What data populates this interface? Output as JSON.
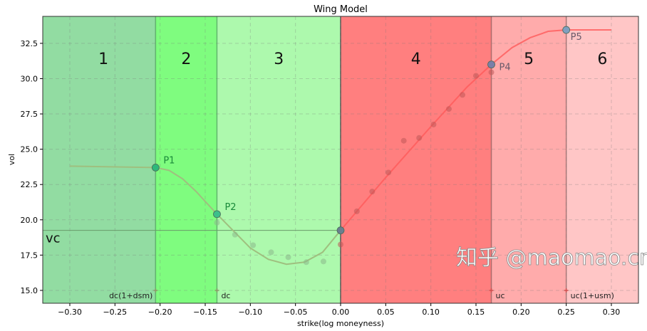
{
  "chart_data": {
    "type": "line",
    "title": "Wing Model",
    "xlabel": "strike(log moneyness)",
    "ylabel": "vol",
    "xlim": [
      -0.33,
      0.33
    ],
    "ylim": [
      14.09,
      34.41
    ],
    "grid": true,
    "xticks": [
      -0.3,
      -0.25,
      -0.2,
      -0.15,
      -0.1,
      -0.05,
      0.0,
      0.05,
      0.1,
      0.15,
      0.2,
      0.25,
      0.3
    ],
    "xtick_labels": [
      "−0.30",
      "−0.25",
      "−0.20",
      "−0.15",
      "−0.10",
      "−0.05",
      "0.00",
      "0.05",
      "0.10",
      "0.15",
      "0.20",
      "0.25",
      "0.30"
    ],
    "yticks": [
      15.0,
      17.5,
      20.0,
      22.5,
      25.0,
      27.5,
      30.0,
      32.5
    ],
    "ytick_labels": [
      "15.0",
      "17.5",
      "20.0",
      "22.5",
      "25.0",
      "27.5",
      "30.0",
      "32.5"
    ],
    "zones": [
      {
        "label": "1",
        "from": -0.33,
        "to": -0.205,
        "color": "#92dca2"
      },
      {
        "label": "2",
        "from": -0.205,
        "to": -0.137,
        "color": "#7ffc7f"
      },
      {
        "label": "3",
        "from": -0.137,
        "to": 0.0,
        "color": "#adf9ad"
      },
      {
        "label": "4",
        "from": 0.0,
        "to": 0.167,
        "color": "#ff7f7f"
      },
      {
        "label": "5",
        "from": 0.167,
        "to": 0.25,
        "color": "#ffabab"
      },
      {
        "label": "6",
        "from": 0.25,
        "to": 0.33,
        "color": "#ffc6c6"
      }
    ],
    "boundary_labels": [
      {
        "label": "dc(1+dsm)",
        "x": -0.205
      },
      {
        "label": "dc",
        "x": -0.137
      },
      {
        "label": "uc",
        "x": 0.167
      },
      {
        "label": "uc(1+usm)",
        "x": 0.25
      }
    ],
    "vc": {
      "label": "vc",
      "value": 19.25
    },
    "key_points": [
      {
        "label": "P1",
        "x": -0.205,
        "y": 23.7,
        "color": "#2eb87a"
      },
      {
        "label": "P2",
        "x": -0.137,
        "y": 20.4,
        "color": "#3cbf8a"
      },
      {
        "label": "",
        "x": 0.0,
        "y": 19.25,
        "color": "#6a7f8f"
      },
      {
        "label": "P4",
        "x": 0.167,
        "y": 31.0,
        "color": "#7a7fa8"
      },
      {
        "label": "P5",
        "x": 0.25,
        "y": 33.45,
        "color": "#7f9fc0"
      }
    ],
    "series": [
      {
        "kind": "model-curve",
        "x": [
          -0.3,
          -0.205,
          -0.19,
          -0.175,
          -0.16,
          -0.15,
          -0.137,
          -0.12,
          -0.1,
          -0.08,
          -0.06,
          -0.04,
          -0.02,
          0.0,
          0.05,
          0.1,
          0.14,
          0.167,
          0.19,
          0.21,
          0.23,
          0.25,
          0.3
        ],
        "y": [
          23.8,
          23.7,
          23.5,
          22.9,
          22.0,
          21.3,
          20.4,
          19.3,
          18.0,
          17.2,
          16.85,
          17.0,
          17.7,
          19.25,
          23.0,
          26.6,
          29.4,
          31.0,
          32.2,
          32.9,
          33.35,
          33.45,
          33.45
        ]
      },
      {
        "kind": "market-points",
        "x": [
          -0.137,
          -0.117,
          -0.097,
          -0.077,
          -0.058,
          -0.038,
          -0.019,
          0.0,
          0.018,
          0.035,
          0.053,
          0.07,
          0.087,
          0.103,
          0.12,
          0.135,
          0.15,
          0.167
        ],
        "y": [
          19.8,
          18.95,
          18.2,
          17.7,
          17.35,
          17.0,
          17.05,
          18.25,
          20.6,
          22.0,
          23.35,
          25.6,
          25.8,
          26.75,
          27.85,
          28.85,
          30.2,
          30.45
        ]
      }
    ]
  },
  "watermark": "知乎 @maomao.cm",
  "colors": {
    "left_curve": "#9fbf7f",
    "right_curve": "#ff5a5a"
  }
}
